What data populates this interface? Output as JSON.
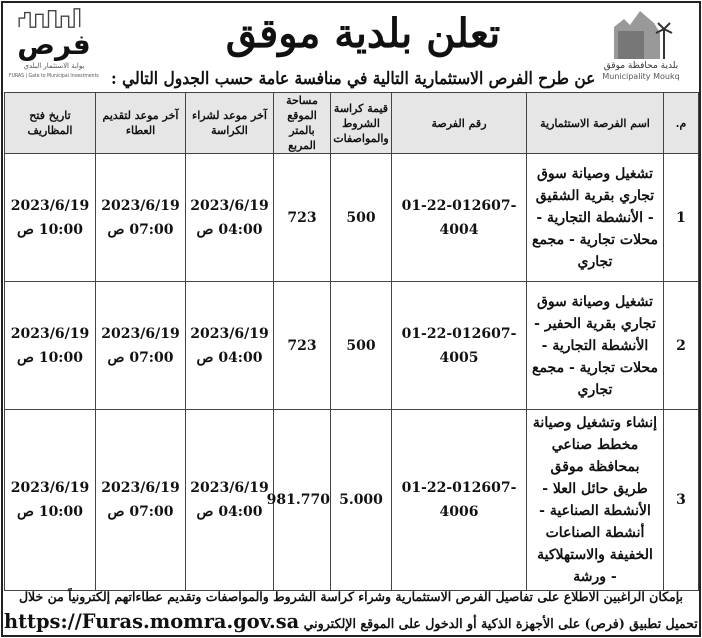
{
  "header": {
    "title": "تعلن بلدية موقق",
    "subtitle": "عن طرح الفرص الاستثمارية التالية في منافسة عامة حسب الجدول التالي :"
  },
  "logo_left": {
    "word": "فرص",
    "arabic": "بوابة الاستثمار البلدي",
    "english": "FURAS | Gate to Municipal Investments"
  },
  "logo_right": {
    "arabic": "بلدية محافظة موقق",
    "english": "Municipality Moukq"
  },
  "table": {
    "headers": [
      "م.",
      "اسم الفرصة الاستثمارية",
      "رقم الفرصة",
      "قيمة كراسة الشروط والمواصفات",
      "مساحة الموقع بالمتر المربع",
      "آخر موعد لشراء الكراسة",
      "آخر موعد لتقديم العطاء",
      "تاريخ فتح المظاريف"
    ],
    "rows": [
      {
        "no": "1",
        "name": "تشغيل وصيانة سوق تجاري بقرية الشقيق - الأنشطة التجارية - محلات تجارية - مجمع تجاري",
        "id": "01-22-012607-4004",
        "fee": "500",
        "area": "723",
        "buy_date": "2023/6/19",
        "buy_time": "04:00 ص",
        "bid_date": "2023/6/19",
        "bid_time": "07:00 ص",
        "open_date": "2023/6/19",
        "open_time": "10:00 ص"
      },
      {
        "no": "2",
        "name": "تشغيل وصيانة سوق تجاري بقرية الحفير - الأنشطة التجارية - محلات تجارية - مجمع تجاري",
        "id": "01-22-012607-4005",
        "fee": "500",
        "area": "723",
        "buy_date": "2023/6/19",
        "buy_time": "04:00 ص",
        "bid_date": "2023/6/19",
        "bid_time": "07:00 ص",
        "open_date": "2023/6/19",
        "open_time": "10:00 ص"
      },
      {
        "no": "3",
        "name": "إنشاء وتشغيل وصيانة مخطط صناعي بمحافظة موقق طريق حائل العلا - الأنشطة الصناعية - أنشطة الصناعات الخفيفة والاستهلاكية - ورشة",
        "id": "01-22-012607-4006",
        "fee": "5.000",
        "area": "981.770",
        "buy_date": "2023/6/19",
        "buy_time": "04:00 ص",
        "bid_date": "2023/6/19",
        "bid_time": "07:00 ص",
        "open_date": "2023/6/19",
        "open_time": "10:00 ص"
      }
    ]
  },
  "footer": {
    "line1": "بإمكان الراغبين الاطلاع على تفاصيل الفرص الاستثمارية وشراء كراسة الشروط والمواصفات وتقديم عطاءاتهم إلكترونياً من خلال",
    "line2": "تحميل تطبيق (فرص) على الأجهزة الذكية أو الدخول على الموقع الإلكتروني",
    "url": "https://Furas.momra.gov.sa"
  }
}
